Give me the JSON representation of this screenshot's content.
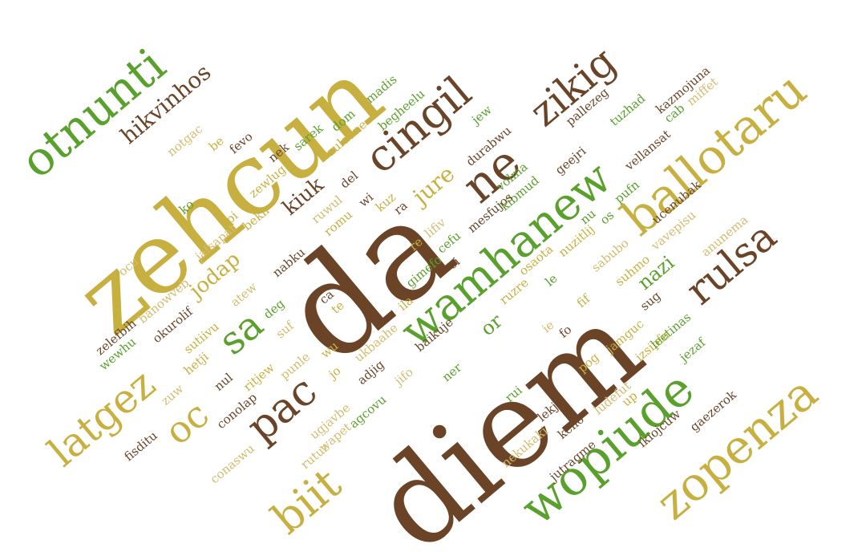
{
  "palette": {
    "brown": "#6b4428",
    "olive": "#c8b040",
    "green": "#5aa02c",
    "tan": "#d2bc6e",
    "dark": "#5a4434"
  },
  "words": [
    {
      "text": "diem",
      "color": "brown"
    },
    {
      "text": "da",
      "color": "brown"
    },
    {
      "text": "zehcun",
      "color": "olive"
    },
    {
      "text": "wamhanew",
      "color": "green"
    },
    {
      "text": "ballotaru",
      "color": "olive"
    },
    {
      "text": "zopenza",
      "color": "olive"
    },
    {
      "text": "wopiude",
      "color": "green"
    },
    {
      "text": "otnunti",
      "color": "green"
    },
    {
      "text": "cingil",
      "color": "brown"
    },
    {
      "text": "rulsa",
      "color": "brown"
    },
    {
      "text": "zikig",
      "color": "brown"
    },
    {
      "text": "latgez",
      "color": "olive"
    },
    {
      "text": "pac",
      "color": "brown"
    },
    {
      "text": "biit",
      "color": "olive"
    },
    {
      "text": "ne",
      "color": "brown"
    },
    {
      "text": "sa",
      "color": "green"
    },
    {
      "text": "oc",
      "color": "olive"
    },
    {
      "text": "hikvinhos",
      "color": "brown"
    },
    {
      "text": "jure",
      "color": "olive"
    },
    {
      "text": "jodap",
      "color": "olive"
    },
    {
      "text": "kiuk",
      "color": "brown"
    },
    {
      "text": "nazi",
      "color": "green"
    },
    {
      "text": "or",
      "color": "green"
    },
    {
      "text": "madis",
      "color": "green"
    },
    {
      "text": "begheelu",
      "color": "green"
    },
    {
      "text": "zuladne",
      "color": "olive"
    },
    {
      "text": "dom",
      "color": "green"
    },
    {
      "text": "sarek",
      "color": "green"
    },
    {
      "text": "nek",
      "color": "brown"
    },
    {
      "text": "zewlug",
      "color": "olive"
    },
    {
      "text": "jew",
      "color": "green"
    },
    {
      "text": "durabwu",
      "color": "brown"
    },
    {
      "text": "volma",
      "color": "green"
    },
    {
      "text": "kibmud",
      "color": "green"
    },
    {
      "text": "geejri",
      "color": "brown"
    },
    {
      "text": "pallezeg",
      "color": "brown"
    },
    {
      "text": "tuzhad",
      "color": "green"
    },
    {
      "text": "kazmojuna",
      "color": "brown"
    },
    {
      "text": "miffet",
      "color": "tan"
    },
    {
      "text": "cab",
      "color": "green"
    },
    {
      "text": "vellansat",
      "color": "brown"
    },
    {
      "text": "ucenubak",
      "color": "brown"
    },
    {
      "text": "pufn",
      "color": "green"
    },
    {
      "text": "anunema",
      "color": "tan"
    },
    {
      "text": "vavepisu",
      "color": "tan"
    },
    {
      "text": "notgac",
      "color": "tan"
    },
    {
      "text": "be",
      "color": "olive"
    },
    {
      "text": "fevo",
      "color": "brown"
    },
    {
      "text": "ko",
      "color": "green"
    },
    {
      "text": "pi",
      "color": "olive"
    },
    {
      "text": "jafsapat",
      "color": "tan"
    },
    {
      "text": "bekh",
      "color": "olive"
    },
    {
      "text": "del",
      "color": "brown"
    },
    {
      "text": "ruwul",
      "color": "tan"
    },
    {
      "text": "romu",
      "color": "olive"
    },
    {
      "text": "wi",
      "color": "brown"
    },
    {
      "text": "kuz",
      "color": "olive"
    },
    {
      "text": "ra",
      "color": "brown"
    },
    {
      "text": "re",
      "color": "olive"
    },
    {
      "text": "lifiv",
      "color": "tan"
    },
    {
      "text": "cefu",
      "color": "green"
    },
    {
      "text": "mesfujos",
      "color": "brown"
    },
    {
      "text": "ci",
      "color": "brown"
    },
    {
      "text": "gimefo",
      "color": "green"
    },
    {
      "text": "ila",
      "color": "olive"
    },
    {
      "text": "osaota",
      "color": "olive"
    },
    {
      "text": "nu",
      "color": "green"
    },
    {
      "text": "nuzitlij",
      "color": "olive"
    },
    {
      "text": "os",
      "color": "green"
    },
    {
      "text": "le",
      "color": "green"
    },
    {
      "text": "ruzre",
      "color": "olive"
    },
    {
      "text": "sabubo",
      "color": "tan"
    },
    {
      "text": "suhmo",
      "color": "olive"
    },
    {
      "text": "fif",
      "color": "olive"
    },
    {
      "text": "sug",
      "color": "brown"
    },
    {
      "text": "ocu",
      "color": "tan"
    },
    {
      "text": "banowveb",
      "color": "tan"
    },
    {
      "text": "okurolif",
      "color": "brown"
    },
    {
      "text": "zelefbih",
      "color": "brown"
    },
    {
      "text": "wewhu",
      "color": "green"
    },
    {
      "text": "sutiivu",
      "color": "olive"
    },
    {
      "text": "hetji",
      "color": "olive"
    },
    {
      "text": "atew",
      "color": "tan"
    },
    {
      "text": "nabku",
      "color": "brown"
    },
    {
      "text": "deg",
      "color": "green"
    },
    {
      "text": "suf",
      "color": "tan"
    },
    {
      "text": "ca",
      "color": "brown"
    },
    {
      "text": "te",
      "color": "olive"
    },
    {
      "text": "wu",
      "color": "olive"
    },
    {
      "text": "jo",
      "color": "olive"
    },
    {
      "text": "ukbaahe",
      "color": "tan"
    },
    {
      "text": "adjig",
      "color": "brown"
    },
    {
      "text": "baikuje",
      "color": "brown"
    },
    {
      "text": "ner",
      "color": "green"
    },
    {
      "text": "jifo",
      "color": "tan"
    },
    {
      "text": "rui",
      "color": "green"
    },
    {
      "text": "fo",
      "color": "brown"
    },
    {
      "text": "ie",
      "color": "tan"
    },
    {
      "text": "pog",
      "color": "olive"
    },
    {
      "text": "jamguc",
      "color": "olive"
    },
    {
      "text": "izsipfu",
      "color": "olive"
    },
    {
      "text": "leetinas",
      "color": "green"
    },
    {
      "text": "jezaf",
      "color": "green"
    },
    {
      "text": "zuw",
      "color": "tan"
    },
    {
      "text": "nul",
      "color": "brown"
    },
    {
      "text": "ritjew",
      "color": "olive"
    },
    {
      "text": "punle",
      "color": "tan"
    },
    {
      "text": "conolap",
      "color": "brown"
    },
    {
      "text": "ugjavbe",
      "color": "tan"
    },
    {
      "text": "agcovu",
      "color": "green"
    },
    {
      "text": "wapet",
      "color": "tan"
    },
    {
      "text": "rutuz",
      "color": "tan"
    },
    {
      "text": "conaswu",
      "color": "tan"
    },
    {
      "text": "fisditu",
      "color": "brown"
    },
    {
      "text": "lekjoj",
      "color": "brown"
    },
    {
      "text": "ludefut",
      "color": "tan"
    },
    {
      "text": "up",
      "color": "olive"
    },
    {
      "text": "keho",
      "color": "brown"
    },
    {
      "text": "nekukaki",
      "color": "tan"
    },
    {
      "text": "jutragme",
      "color": "brown"
    },
    {
      "text": "ikiojcuw",
      "color": "brown"
    },
    {
      "text": "gaezerok",
      "color": "brown"
    }
  ]
}
